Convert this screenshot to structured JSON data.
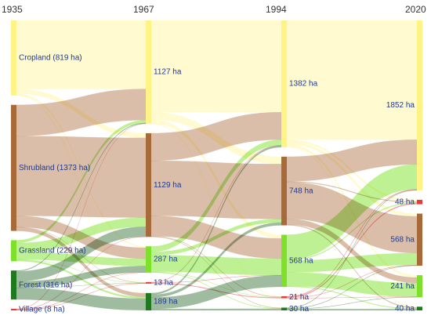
{
  "years": [
    "1935",
    "1967",
    "1994",
    "2020"
  ],
  "colors": {
    "cropland": "#fff8bf",
    "shrubland": "#a86a38",
    "grassland": "#7ee02a",
    "forest": "#1f7a1f",
    "village": "#e83a3a",
    "cropland_node": "#fff385",
    "shrubland_link": "#d3b39a",
    "grassland_link": "#b3ee80",
    "forest_link": "#8fb08f",
    "village_link": "#f08a8a"
  },
  "columns": [
    {
      "year": "1935",
      "nodes": [
        {
          "id": "c35",
          "class": "cropland",
          "label": "Cropland (819 ha)",
          "value": 819
        },
        {
          "id": "s35",
          "class": "shrubland",
          "label": "Shrubland (1373 ha)",
          "value": 1373
        },
        {
          "id": "g35",
          "class": "grassland",
          "label": "Grassland (229 ha)",
          "value": 229
        },
        {
          "id": "f35",
          "class": "forest",
          "label": "Forest (316 ha)",
          "value": 316
        },
        {
          "id": "v35",
          "class": "village",
          "label": "Village (8 ha)",
          "value": 8
        }
      ]
    },
    {
      "year": "1967",
      "nodes": [
        {
          "id": "c67",
          "class": "cropland",
          "label": "1127 ha",
          "value": 1127
        },
        {
          "id": "s67",
          "class": "shrubland",
          "label": "1129 ha",
          "value": 1129
        },
        {
          "id": "g67",
          "class": "grassland",
          "label": "287 ha",
          "value": 287
        },
        {
          "id": "v67",
          "class": "village",
          "label": "13 ha",
          "value": 13
        },
        {
          "id": "f67",
          "class": "forest",
          "label": "189 ha",
          "value": 189
        }
      ]
    },
    {
      "year": "1994",
      "nodes": [
        {
          "id": "c94",
          "class": "cropland",
          "label": "1382 ha",
          "value": 1382
        },
        {
          "id": "s94",
          "class": "shrubland",
          "label": "748 ha",
          "value": 748
        },
        {
          "id": "g94",
          "class": "grassland",
          "label": "568 ha",
          "value": 568
        },
        {
          "id": "v94",
          "class": "village",
          "label": "21 ha",
          "value": 21
        },
        {
          "id": "f94",
          "class": "forest",
          "label": "30 ha",
          "value": 30
        }
      ]
    },
    {
      "year": "2020",
      "nodes": [
        {
          "id": "c20",
          "class": "cropland",
          "label": "1852 ha",
          "value": 1852
        },
        {
          "id": "v20",
          "class": "village",
          "label": "48 ha",
          "value": 48
        },
        {
          "id": "s20",
          "class": "shrubland",
          "label": "568 ha",
          "value": 568
        },
        {
          "id": "g20",
          "class": "grassland",
          "label": "241 ha",
          "value": 241
        },
        {
          "id": "f20",
          "class": "forest",
          "label": "40 ha",
          "value": 40
        }
      ]
    }
  ],
  "links": [
    {
      "source": "c35",
      "target": "c67",
      "value": 748
    },
    {
      "source": "c35",
      "target": "s67",
      "value": 50
    },
    {
      "source": "c35",
      "target": "g67",
      "value": 15
    },
    {
      "source": "c35",
      "target": "v67",
      "value": 4
    },
    {
      "source": "c35",
      "target": "f67",
      "value": 2
    },
    {
      "source": "s35",
      "target": "c67",
      "value": 340
    },
    {
      "source": "s35",
      "target": "s67",
      "value": 870
    },
    {
      "source": "s35",
      "target": "g67",
      "value": 120
    },
    {
      "source": "s35",
      "target": "v67",
      "value": 3
    },
    {
      "source": "s35",
      "target": "f67",
      "value": 40
    },
    {
      "source": "g35",
      "target": "c67",
      "value": 30
    },
    {
      "source": "g35",
      "target": "s67",
      "value": 100
    },
    {
      "source": "g35",
      "target": "g67",
      "value": 80
    },
    {
      "source": "g35",
      "target": "v67",
      "value": 2
    },
    {
      "source": "g35",
      "target": "f67",
      "value": 17
    },
    {
      "source": "f35",
      "target": "c67",
      "value": 9
    },
    {
      "source": "f35",
      "target": "s67",
      "value": 109
    },
    {
      "source": "f35",
      "target": "g67",
      "value": 70
    },
    {
      "source": "f35",
      "target": "v67",
      "value": 2
    },
    {
      "source": "f35",
      "target": "f67",
      "value": 126
    },
    {
      "source": "v35",
      "target": "v67",
      "value": 2
    },
    {
      "source": "v35",
      "target": "c67",
      "value": 2
    },
    {
      "source": "v35",
      "target": "s67",
      "value": 2
    },
    {
      "source": "v35",
      "target": "g67",
      "value": 2
    },
    {
      "source": "c67",
      "target": "c94",
      "value": 1000
    },
    {
      "source": "c67",
      "target": "s94",
      "value": 80
    },
    {
      "source": "c67",
      "target": "g94",
      "value": 40
    },
    {
      "source": "c67",
      "target": "v94",
      "value": 5
    },
    {
      "source": "c67",
      "target": "f94",
      "value": 2
    },
    {
      "source": "s67",
      "target": "c94",
      "value": 300
    },
    {
      "source": "s67",
      "target": "s94",
      "value": 600
    },
    {
      "source": "s67",
      "target": "g94",
      "value": 220
    },
    {
      "source": "s67",
      "target": "v94",
      "value": 5
    },
    {
      "source": "s67",
      "target": "f94",
      "value": 4
    },
    {
      "source": "g67",
      "target": "c94",
      "value": 60
    },
    {
      "source": "g67",
      "target": "s94",
      "value": 38
    },
    {
      "source": "g67",
      "target": "g94",
      "value": 180
    },
    {
      "source": "g67",
      "target": "v94",
      "value": 4
    },
    {
      "source": "g67",
      "target": "f94",
      "value": 5
    },
    {
      "source": "v67",
      "target": "v94",
      "value": 6
    },
    {
      "source": "v67",
      "target": "c94",
      "value": 4
    },
    {
      "source": "v67",
      "target": "g94",
      "value": 3
    },
    {
      "source": "f67",
      "target": "c94",
      "value": 18
    },
    {
      "source": "f67",
      "target": "s94",
      "value": 30
    },
    {
      "source": "f67",
      "target": "g94",
      "value": 125
    },
    {
      "source": "v67",
      "target": "f94",
      "value": 0
    },
    {
      "source": "f67",
      "target": "f94",
      "value": 16
    },
    {
      "source": "c94",
      "target": "c20",
      "value": 1300
    },
    {
      "source": "c94",
      "target": "v20",
      "value": 20
    },
    {
      "source": "c94",
      "target": "s20",
      "value": 30
    },
    {
      "source": "c94",
      "target": "g20",
      "value": 25
    },
    {
      "source": "c94",
      "target": "f20",
      "value": 7
    },
    {
      "source": "s94",
      "target": "c20",
      "value": 270
    },
    {
      "source": "s94",
      "target": "v20",
      "value": 8
    },
    {
      "source": "s94",
      "target": "s20",
      "value": 400
    },
    {
      "source": "s94",
      "target": "g20",
      "value": 60
    },
    {
      "source": "s94",
      "target": "f20",
      "value": 10
    },
    {
      "source": "g94",
      "target": "c20",
      "value": 270
    },
    {
      "source": "g94",
      "target": "v20",
      "value": 10
    },
    {
      "source": "g94",
      "target": "s20",
      "value": 130
    },
    {
      "source": "g94",
      "target": "g20",
      "value": 150
    },
    {
      "source": "g94",
      "target": "f20",
      "value": 8
    },
    {
      "source": "v94",
      "target": "c20",
      "value": 6
    },
    {
      "source": "v94",
      "target": "v20",
      "value": 10
    },
    {
      "source": "v94",
      "target": "s20",
      "value": 3
    },
    {
      "source": "v94",
      "target": "g20",
      "value": 2
    },
    {
      "source": "f94",
      "target": "c20",
      "value": 6
    },
    {
      "source": "f94",
      "target": "s20",
      "value": 5
    },
    {
      "source": "f94",
      "target": "g20",
      "value": 4
    },
    {
      "source": "f94",
      "target": "f20",
      "value": 15
    }
  ]
}
